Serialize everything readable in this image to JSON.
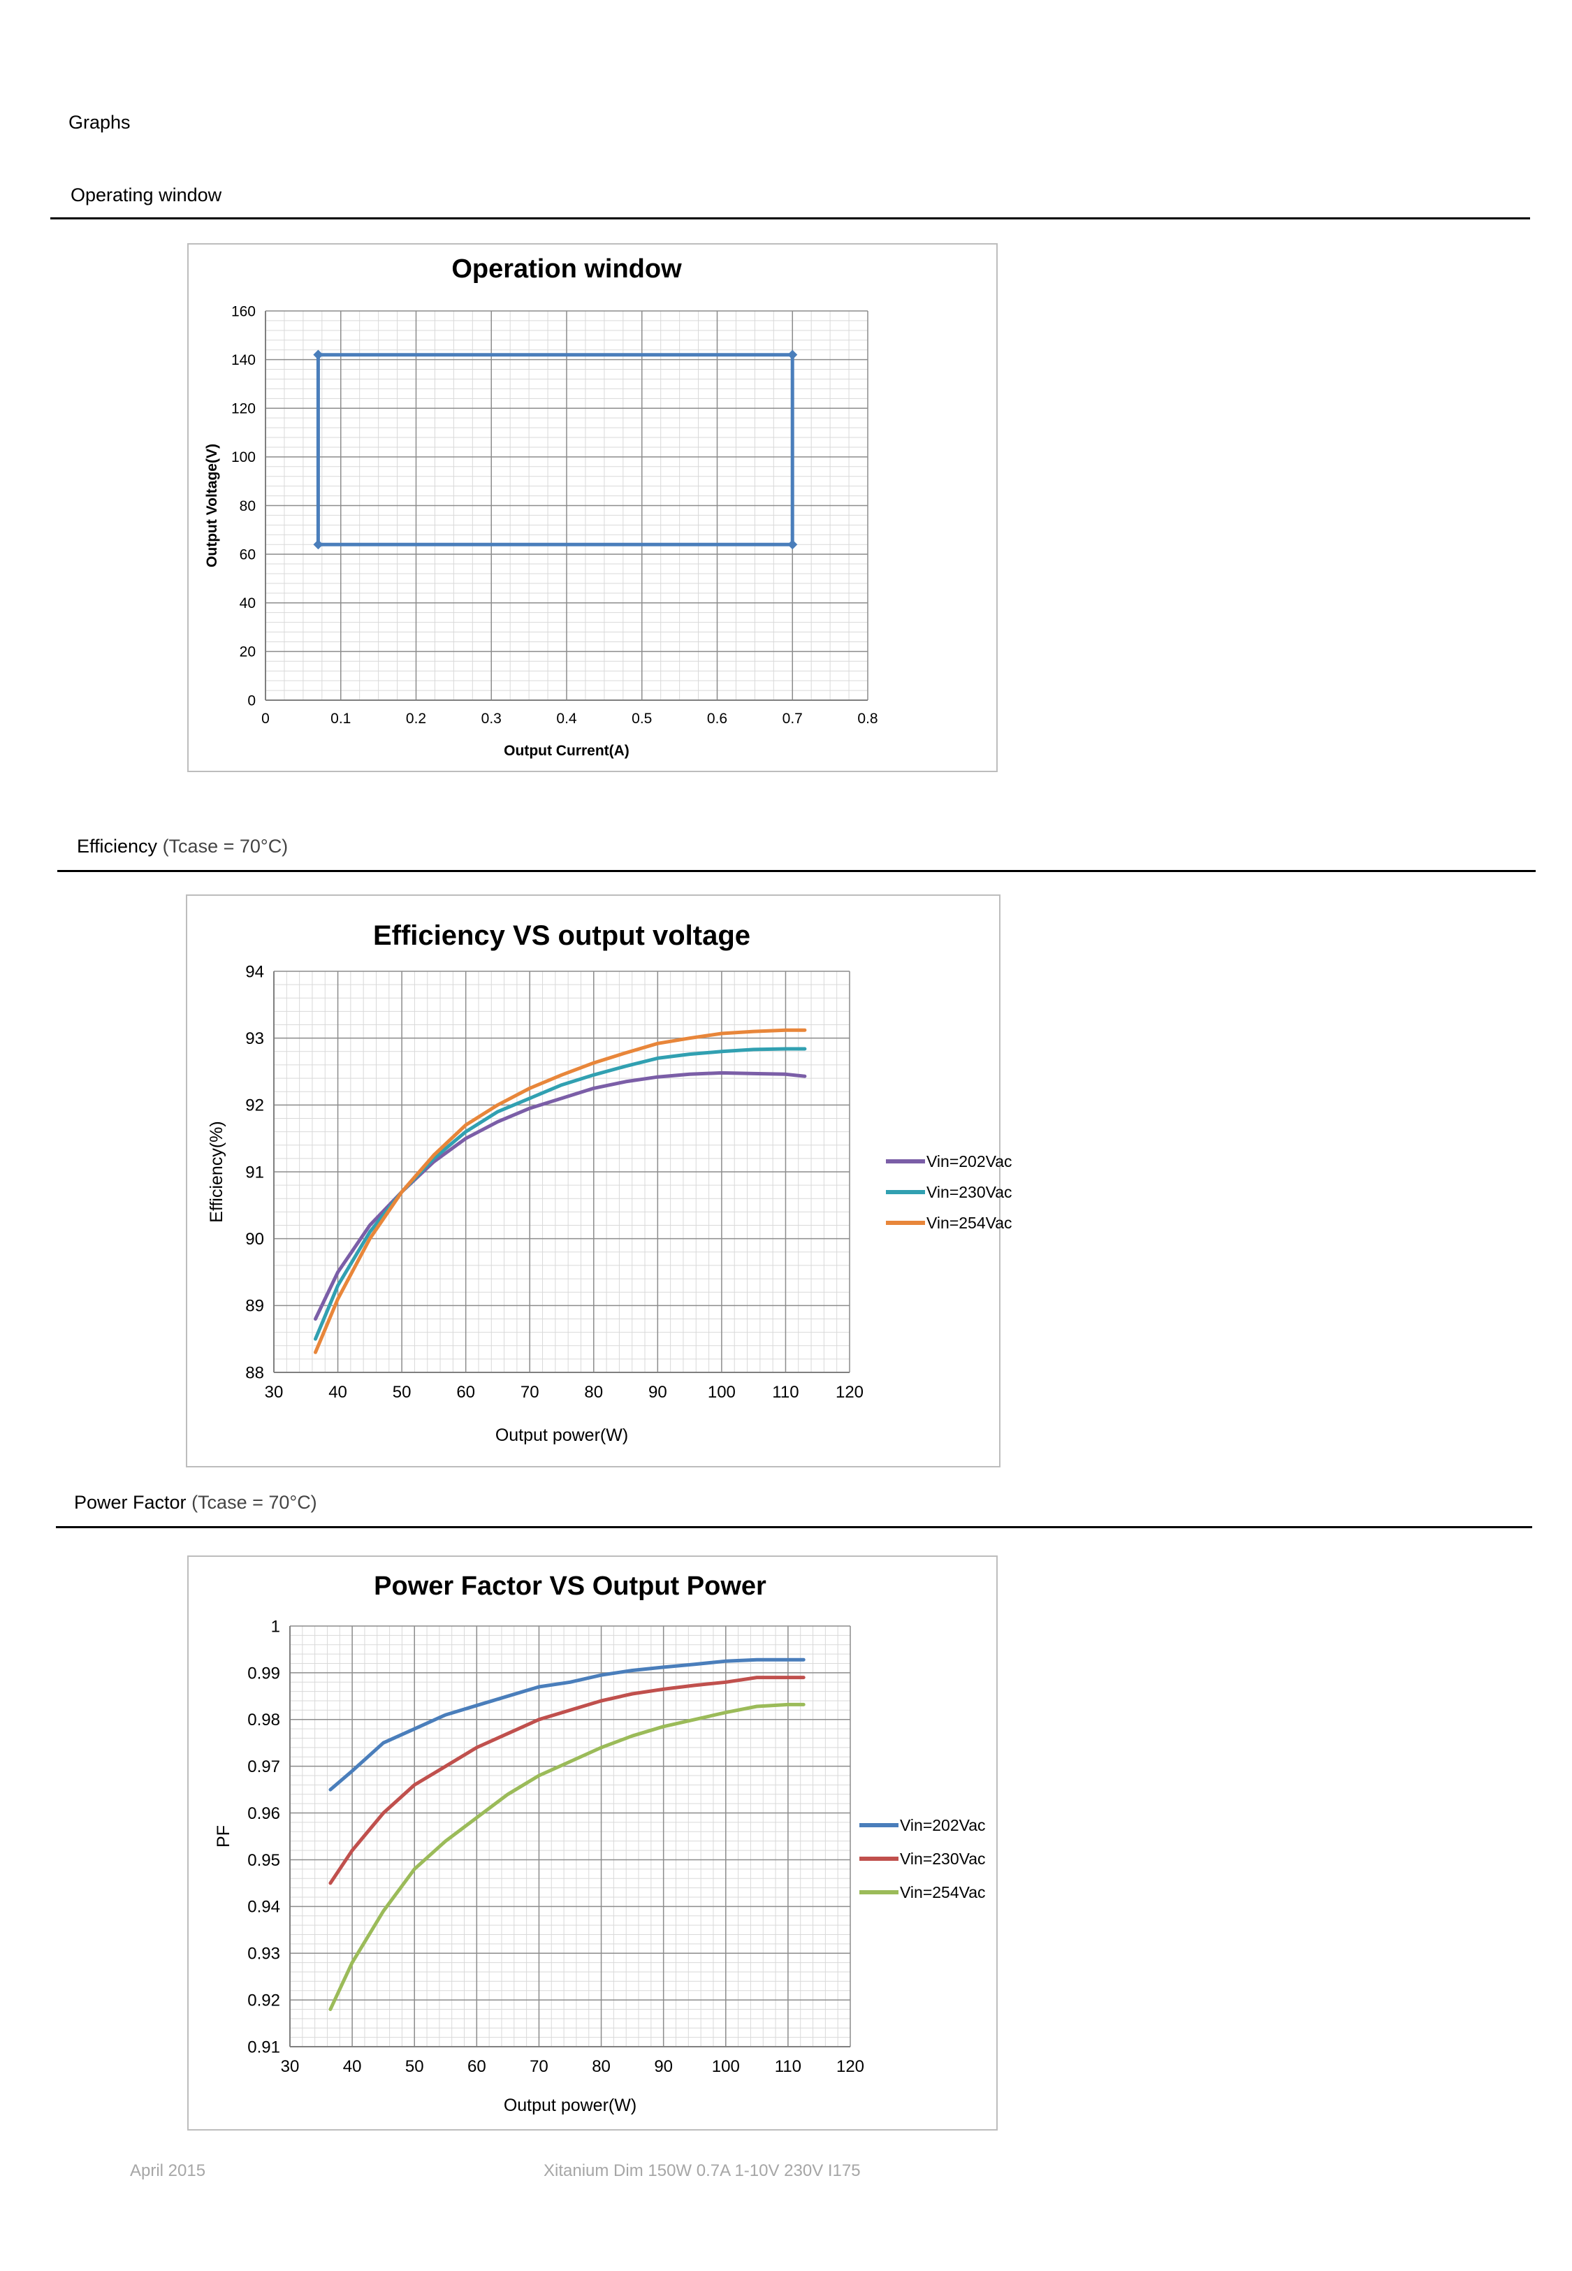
{
  "page": {
    "heading": "Graphs",
    "footer_left": "April 2015",
    "footer_center": "Xitanium Dim 150W 0.7A 1-10V 230V I175"
  },
  "sections": {
    "operating": {
      "title": "Operating window",
      "note": ""
    },
    "efficiency": {
      "title": "Efficiency",
      "note": " (Tcase = 70°C)"
    },
    "power_factor": {
      "title": "Power Factor",
      "note": " (Tcase = 70°C)"
    }
  },
  "chart_data": [
    {
      "id": "operation-window",
      "type": "line",
      "title": "Operation window",
      "xlabel": "Output Current(A)",
      "ylabel": "Output Voltage(V)",
      "xlim": [
        0,
        0.8
      ],
      "ylim": [
        0,
        160
      ],
      "xticks": [
        0,
        0.1,
        0.2,
        0.3,
        0.4,
        0.5,
        0.6,
        0.7,
        0.8
      ],
      "yticks": [
        0,
        20,
        40,
        60,
        80,
        100,
        120,
        140,
        160
      ],
      "grid": true,
      "legend": "none",
      "series": [
        {
          "color": "#4a7ebb",
          "x": [
            0.07,
            0.7,
            0.7,
            0.07,
            0.07
          ],
          "y": [
            142,
            142,
            64,
            64,
            142
          ]
        }
      ]
    },
    {
      "id": "efficiency",
      "type": "line",
      "title": "Efficiency VS output voltage",
      "xlabel": "Output power(W)",
      "ylabel": "Efficiency(%)",
      "xlim": [
        30,
        120
      ],
      "ylim": [
        88,
        94
      ],
      "xticks": [
        30,
        40,
        50,
        60,
        70,
        80,
        90,
        100,
        110,
        120
      ],
      "yticks": [
        88,
        89,
        90,
        91,
        92,
        93,
        94
      ],
      "grid": true,
      "legend": "right",
      "x": [
        36.5,
        40,
        45,
        50,
        55,
        60,
        65,
        70,
        75,
        80,
        85,
        90,
        95,
        100,
        105,
        110,
        113
      ],
      "series": [
        {
          "name": "Vin=202Vac",
          "color": "#7b5ea7",
          "values": [
            88.8,
            89.5,
            90.2,
            90.7,
            91.15,
            91.5,
            91.75,
            91.95,
            92.1,
            92.25,
            92.35,
            92.42,
            92.46,
            92.48,
            92.47,
            92.46,
            92.43
          ]
        },
        {
          "name": "Vin=230Vac",
          "color": "#31a0b1",
          "values": [
            88.5,
            89.3,
            90.1,
            90.7,
            91.2,
            91.6,
            91.9,
            92.1,
            92.3,
            92.45,
            92.58,
            92.7,
            92.76,
            92.8,
            92.83,
            92.84,
            92.84
          ]
        },
        {
          "name": "Vin=254Vac",
          "color": "#e8863a",
          "values": [
            88.3,
            89.1,
            90.0,
            90.7,
            91.25,
            91.7,
            92.0,
            92.25,
            92.45,
            92.63,
            92.78,
            92.92,
            93.0,
            93.07,
            93.1,
            93.12,
            93.12
          ]
        }
      ]
    },
    {
      "id": "power-factor",
      "type": "line",
      "title": "Power Factor VS Output Power",
      "xlabel": "Output power(W)",
      "ylabel": "PF",
      "xlim": [
        30,
        120
      ],
      "ylim": [
        0.91,
        1
      ],
      "xticks": [
        30,
        40,
        50,
        60,
        70,
        80,
        90,
        100,
        110,
        120
      ],
      "yticks": [
        0.91,
        0.92,
        0.93,
        0.94,
        0.95,
        0.96,
        0.97,
        0.98,
        0.99,
        1
      ],
      "ytick_labels": [
        "0.91",
        "0.92",
        "0.93",
        "0.94",
        "0.95",
        "0.96",
        "0.97",
        "0.98",
        "0.99",
        "1"
      ],
      "grid": true,
      "legend": "right",
      "x": [
        36.5,
        40,
        45,
        50,
        55,
        60,
        65,
        70,
        75,
        80,
        85,
        90,
        95,
        100,
        105,
        110,
        112.5
      ],
      "series": [
        {
          "name": "Vin=202Vac",
          "color": "#4a7ebb",
          "values": [
            0.965,
            0.969,
            0.975,
            0.978,
            0.981,
            0.983,
            0.985,
            0.987,
            0.988,
            0.9895,
            0.9905,
            0.9912,
            0.9918,
            0.9925,
            0.9928,
            0.9928,
            0.9928
          ]
        },
        {
          "name": "Vin=230Vac",
          "color": "#c0504d",
          "values": [
            0.945,
            0.952,
            0.96,
            0.966,
            0.97,
            0.974,
            0.977,
            0.98,
            0.982,
            0.984,
            0.9855,
            0.9865,
            0.9873,
            0.988,
            0.989,
            0.989,
            0.989
          ]
        },
        {
          "name": "Vin=254Vac",
          "color": "#9bbb59",
          "values": [
            0.918,
            0.928,
            0.939,
            0.948,
            0.954,
            0.959,
            0.964,
            0.968,
            0.971,
            0.974,
            0.9765,
            0.9785,
            0.98,
            0.9815,
            0.9828,
            0.9832,
            0.9832
          ]
        }
      ]
    }
  ]
}
